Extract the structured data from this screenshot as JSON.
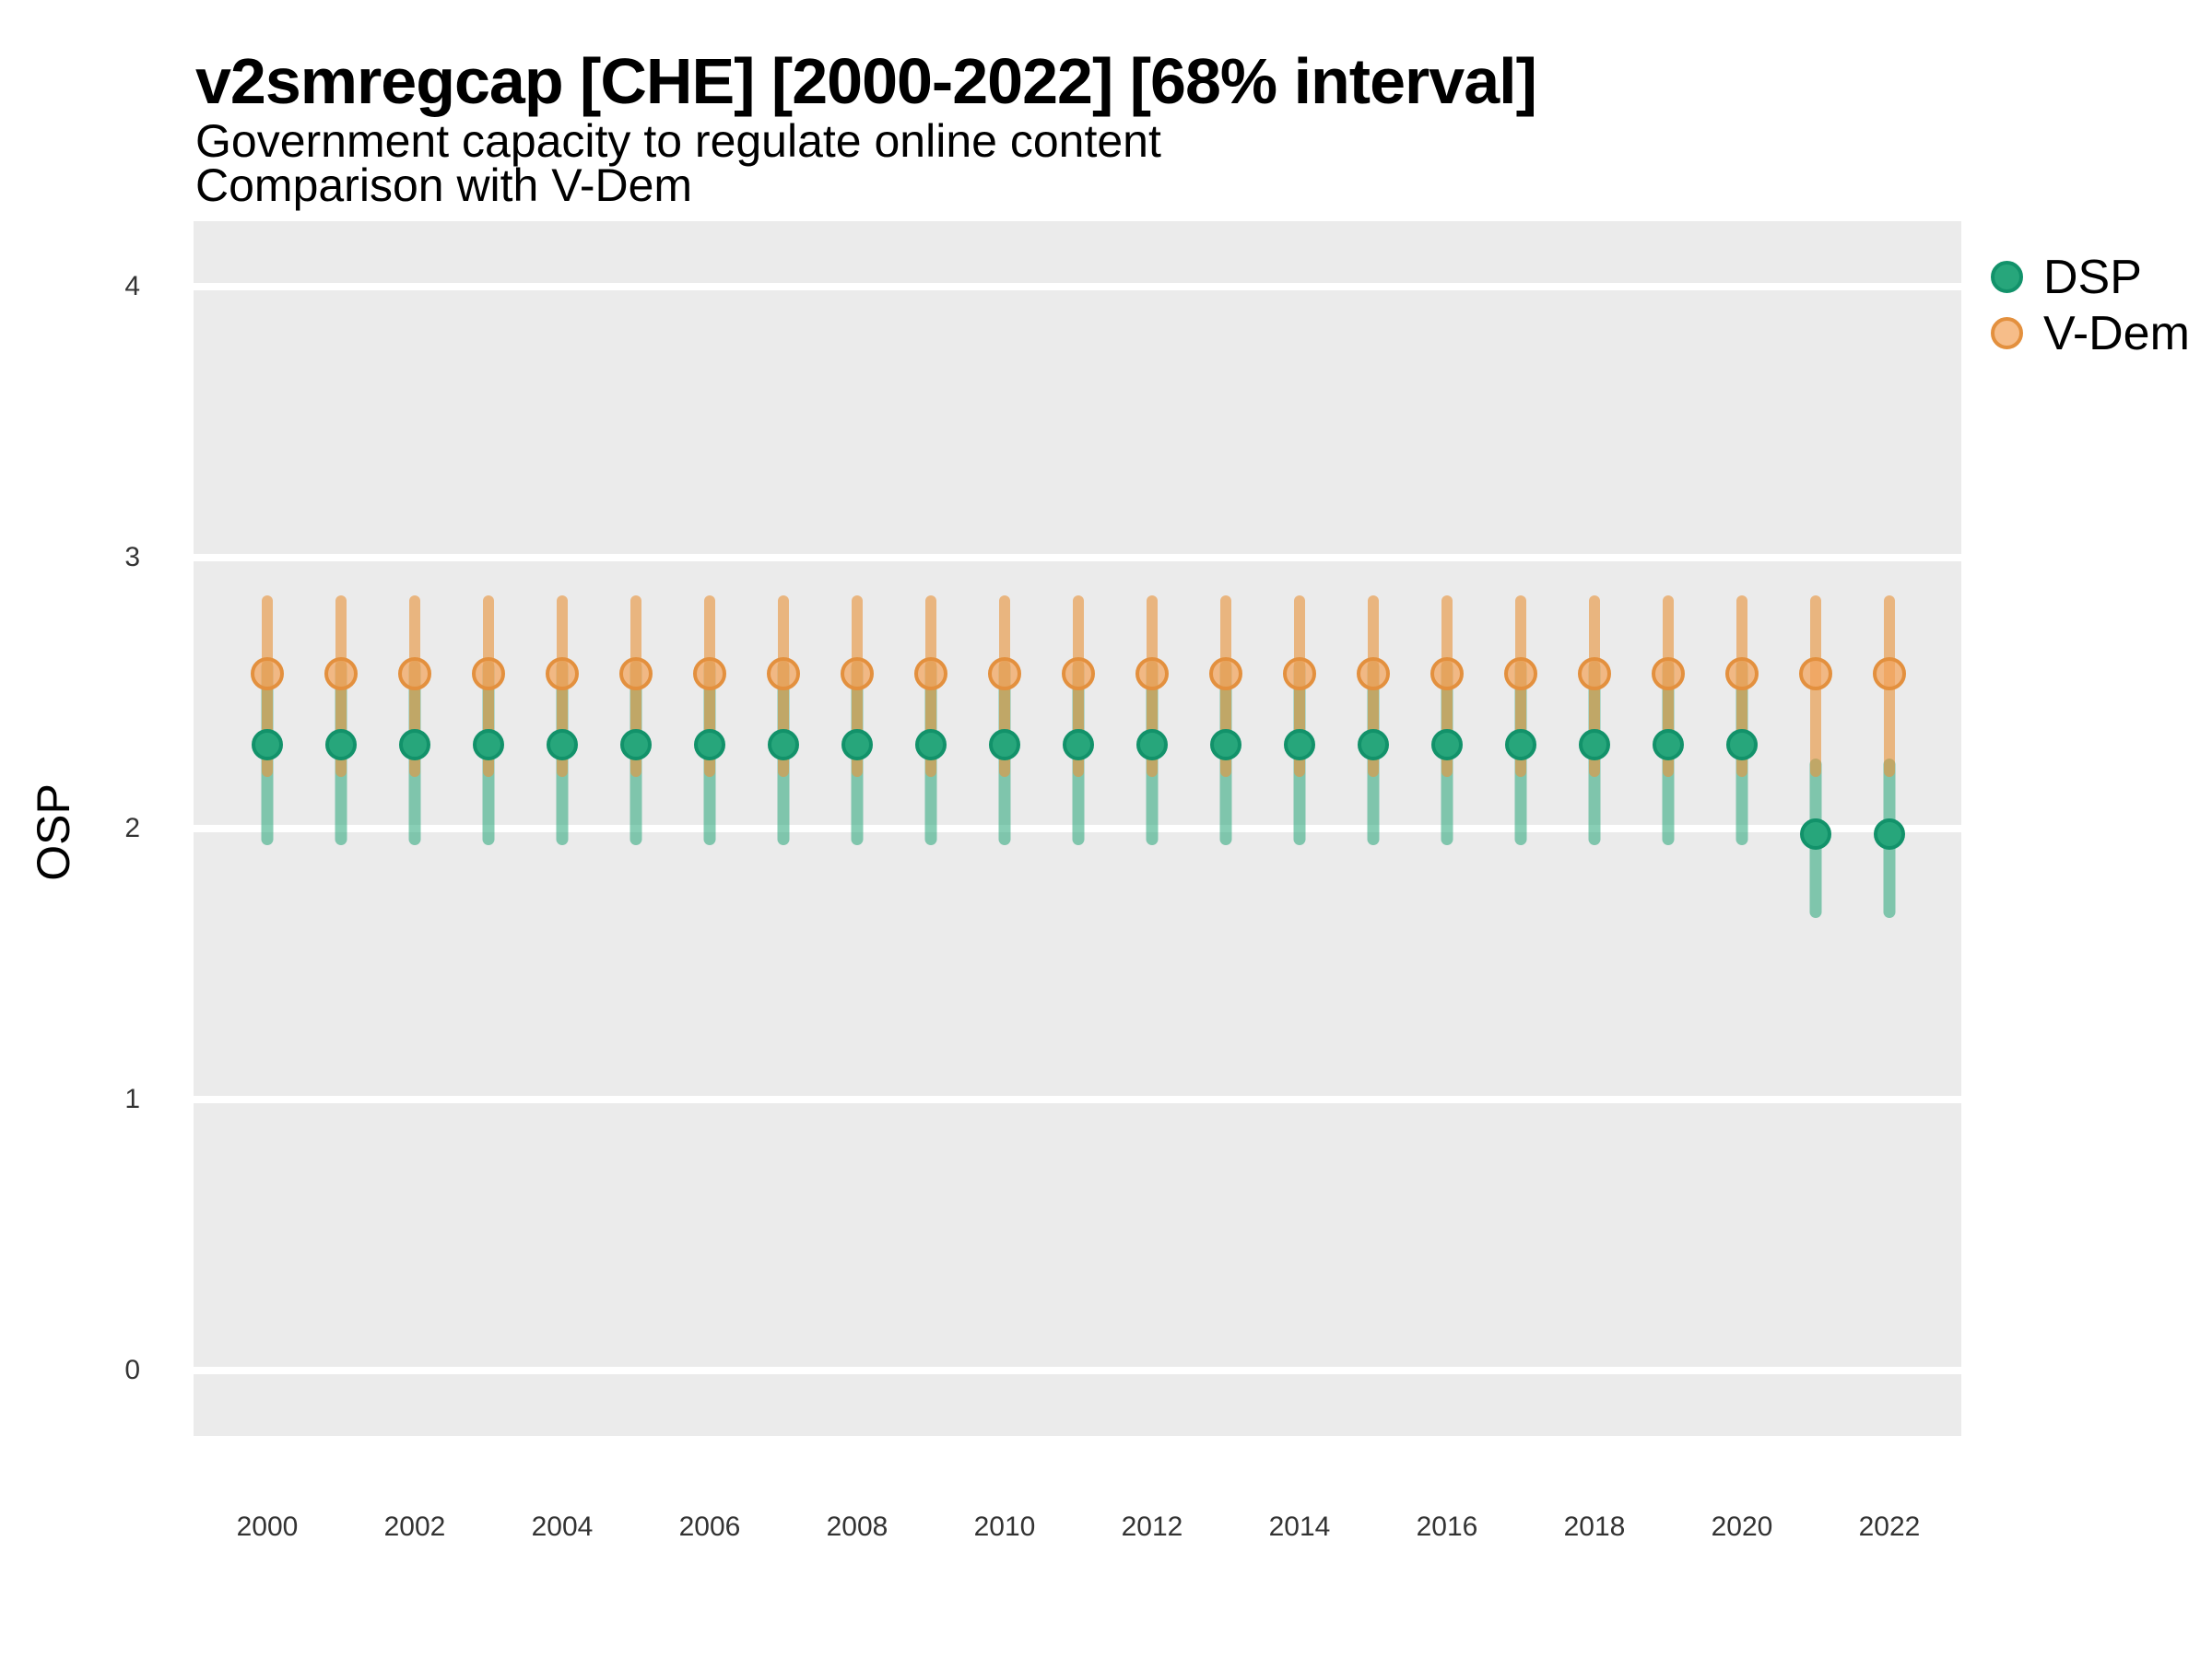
{
  "chart_data": {
    "type": "scatter",
    "subtype": "pointrange-errorbar",
    "title": "v2smregcap [CHE] [2000-2022] [68% interval]",
    "subtitle_line1": "Government capacity to regulate online content",
    "subtitle_line2": "Comparison with V-Dem",
    "ylabel": "OSP",
    "xlabel": "",
    "ylim": [
      -0.24,
      4.24
    ],
    "yticks": [
      0,
      1,
      2,
      3,
      4
    ],
    "xtick_years": [
      2000,
      2002,
      2004,
      2006,
      2008,
      2010,
      2012,
      2014,
      2016,
      2018,
      2020,
      2022
    ],
    "grid": "horizontal-major-white-on-gray-panel",
    "panel_color": "#EBEBEB",
    "gridline_color": "#FFFFFF",
    "legend_position": "right-top",
    "series": [
      {
        "name": "DSP",
        "point_fill": "#27A67B",
        "point_stroke": "#12926A",
        "bar_color": "rgba(38,166,121,0.55)",
        "points": [
          {
            "x": 2000,
            "y": 2.31,
            "lo": 1.94,
            "hi": 2.62
          },
          {
            "x": 2001,
            "y": 2.31,
            "lo": 1.94,
            "hi": 2.62
          },
          {
            "x": 2002,
            "y": 2.31,
            "lo": 1.94,
            "hi": 2.62
          },
          {
            "x": 2003,
            "y": 2.31,
            "lo": 1.94,
            "hi": 2.62
          },
          {
            "x": 2004,
            "y": 2.31,
            "lo": 1.94,
            "hi": 2.62
          },
          {
            "x": 2005,
            "y": 2.31,
            "lo": 1.94,
            "hi": 2.62
          },
          {
            "x": 2006,
            "y": 2.31,
            "lo": 1.94,
            "hi": 2.62
          },
          {
            "x": 2007,
            "y": 2.31,
            "lo": 1.94,
            "hi": 2.62
          },
          {
            "x": 2008,
            "y": 2.31,
            "lo": 1.94,
            "hi": 2.62
          },
          {
            "x": 2009,
            "y": 2.31,
            "lo": 1.94,
            "hi": 2.62
          },
          {
            "x": 2010,
            "y": 2.31,
            "lo": 1.94,
            "hi": 2.62
          },
          {
            "x": 2011,
            "y": 2.31,
            "lo": 1.94,
            "hi": 2.62
          },
          {
            "x": 2012,
            "y": 2.31,
            "lo": 1.94,
            "hi": 2.62
          },
          {
            "x": 2013,
            "y": 2.31,
            "lo": 1.94,
            "hi": 2.62
          },
          {
            "x": 2014,
            "y": 2.31,
            "lo": 1.94,
            "hi": 2.62
          },
          {
            "x": 2015,
            "y": 2.31,
            "lo": 1.94,
            "hi": 2.62
          },
          {
            "x": 2016,
            "y": 2.31,
            "lo": 1.94,
            "hi": 2.62
          },
          {
            "x": 2017,
            "y": 2.31,
            "lo": 1.94,
            "hi": 2.62
          },
          {
            "x": 2018,
            "y": 2.31,
            "lo": 1.94,
            "hi": 2.62
          },
          {
            "x": 2019,
            "y": 2.31,
            "lo": 1.94,
            "hi": 2.62
          },
          {
            "x": 2020,
            "y": 2.31,
            "lo": 1.94,
            "hi": 2.62
          },
          {
            "x": 2021,
            "y": 1.98,
            "lo": 1.67,
            "hi": 2.26
          },
          {
            "x": 2022,
            "y": 1.98,
            "lo": 1.67,
            "hi": 2.26
          }
        ]
      },
      {
        "name": "V-Dem",
        "point_fill": "rgba(243,163,92,0.72)",
        "point_stroke": "#E3903E",
        "bar_color": "rgba(232,148,61,0.62)",
        "points": [
          {
            "x": 2000,
            "y": 2.57,
            "lo": 2.19,
            "hi": 2.86
          },
          {
            "x": 2001,
            "y": 2.57,
            "lo": 2.19,
            "hi": 2.86
          },
          {
            "x": 2002,
            "y": 2.57,
            "lo": 2.19,
            "hi": 2.86
          },
          {
            "x": 2003,
            "y": 2.57,
            "lo": 2.19,
            "hi": 2.86
          },
          {
            "x": 2004,
            "y": 2.57,
            "lo": 2.19,
            "hi": 2.86
          },
          {
            "x": 2005,
            "y": 2.57,
            "lo": 2.19,
            "hi": 2.86
          },
          {
            "x": 2006,
            "y": 2.57,
            "lo": 2.19,
            "hi": 2.86
          },
          {
            "x": 2007,
            "y": 2.57,
            "lo": 2.19,
            "hi": 2.86
          },
          {
            "x": 2008,
            "y": 2.57,
            "lo": 2.19,
            "hi": 2.86
          },
          {
            "x": 2009,
            "y": 2.57,
            "lo": 2.19,
            "hi": 2.86
          },
          {
            "x": 2010,
            "y": 2.57,
            "lo": 2.19,
            "hi": 2.86
          },
          {
            "x": 2011,
            "y": 2.57,
            "lo": 2.19,
            "hi": 2.86
          },
          {
            "x": 2012,
            "y": 2.57,
            "lo": 2.19,
            "hi": 2.86
          },
          {
            "x": 2013,
            "y": 2.57,
            "lo": 2.19,
            "hi": 2.86
          },
          {
            "x": 2014,
            "y": 2.57,
            "lo": 2.19,
            "hi": 2.86
          },
          {
            "x": 2015,
            "y": 2.57,
            "lo": 2.19,
            "hi": 2.86
          },
          {
            "x": 2016,
            "y": 2.57,
            "lo": 2.19,
            "hi": 2.86
          },
          {
            "x": 2017,
            "y": 2.57,
            "lo": 2.19,
            "hi": 2.86
          },
          {
            "x": 2018,
            "y": 2.57,
            "lo": 2.19,
            "hi": 2.86
          },
          {
            "x": 2019,
            "y": 2.57,
            "lo": 2.19,
            "hi": 2.86
          },
          {
            "x": 2020,
            "y": 2.57,
            "lo": 2.19,
            "hi": 2.86
          },
          {
            "x": 2021,
            "y": 2.57,
            "lo": 2.19,
            "hi": 2.86
          },
          {
            "x": 2022,
            "y": 2.57,
            "lo": 2.19,
            "hi": 2.86
          }
        ]
      }
    ]
  }
}
